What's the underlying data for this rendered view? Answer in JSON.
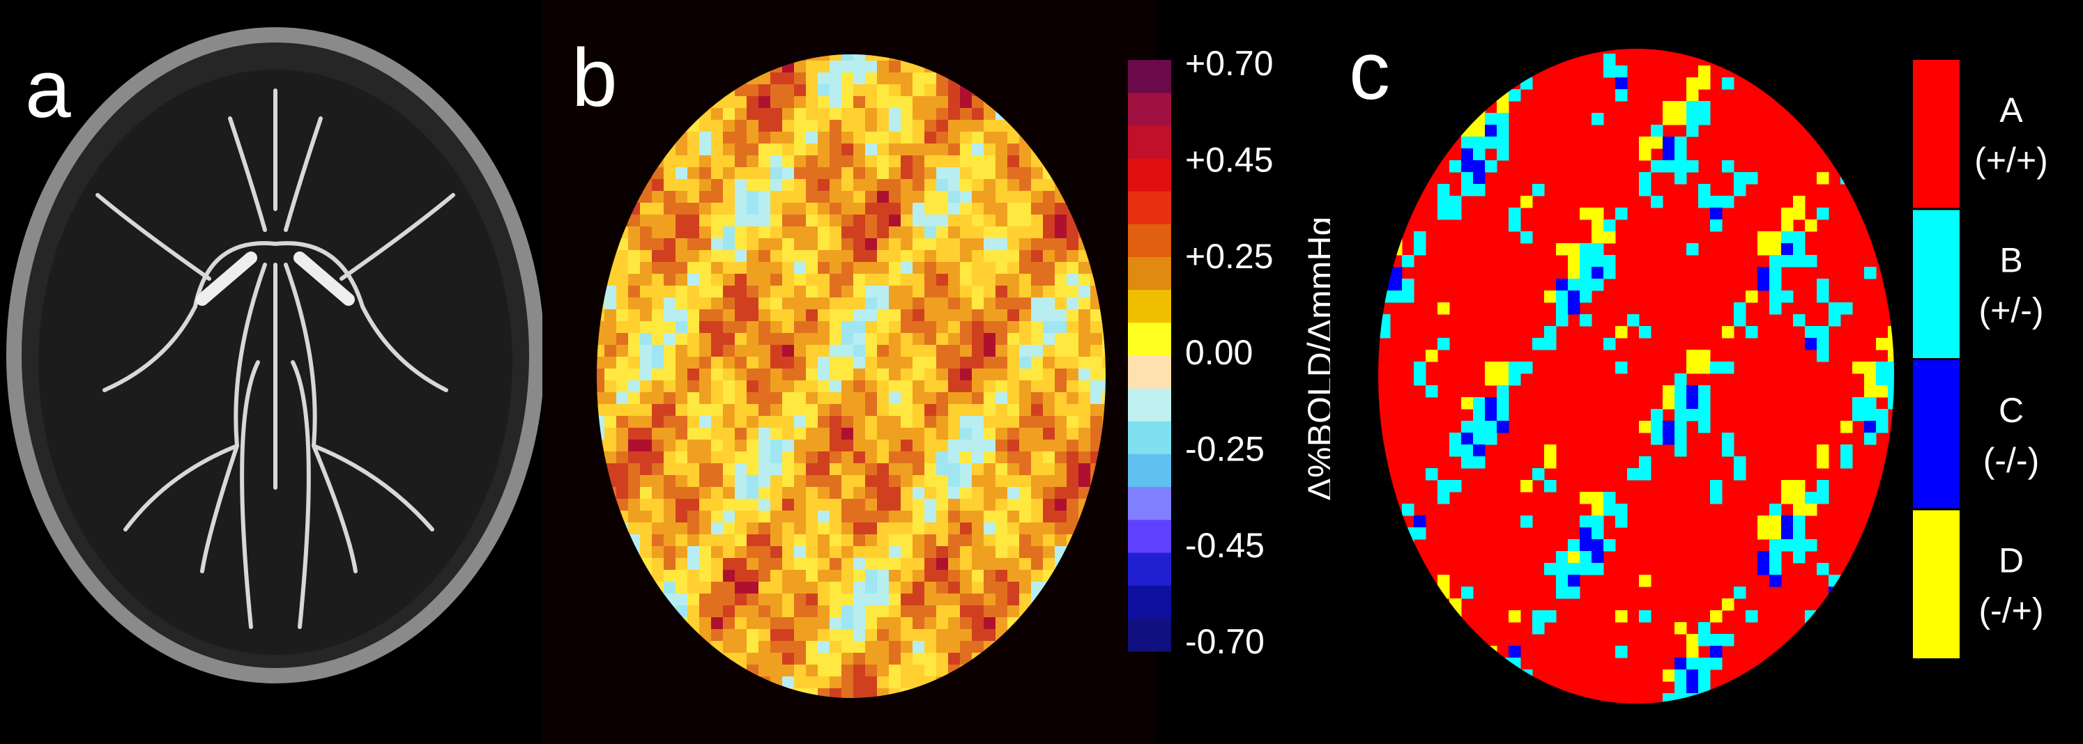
{
  "panels": {
    "a": {
      "label": "a"
    },
    "b": {
      "label": "b",
      "colorbar": {
        "title": "Δ%BOLD/ΔmmHg",
        "ticks": [
          "+0.70",
          "+0.45",
          "+0.25",
          "0.00",
          "-0.25",
          "-0.45",
          "-0.70"
        ]
      }
    },
    "c": {
      "label": "c",
      "legend": [
        {
          "letter": "A",
          "sign": "(+/+)",
          "color": "#ff0000"
        },
        {
          "letter": "B",
          "sign": "(+/-)",
          "color": "#00ffff"
        },
        {
          "letter": "C",
          "sign": "(-/-)",
          "color": "#0000ff"
        },
        {
          "letter": "D",
          "sign": "(-/+)",
          "color": "#ffff00"
        }
      ]
    }
  }
}
